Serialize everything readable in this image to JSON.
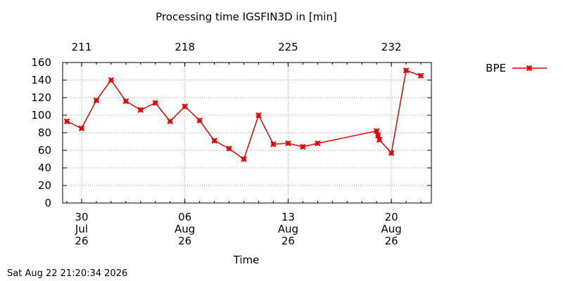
{
  "chart_data": {
    "type": "line",
    "title": "Processing time IGSFIN3D in [min]",
    "xlabel": "Time",
    "ylabel": "",
    "ylim": [
      0,
      160
    ],
    "xlim": [
      "2026-07-29",
      "2026-08-23"
    ],
    "y_ticks": [
      "0",
      "20",
      "40",
      "60",
      "80",
      "100",
      "120",
      "140",
      "160"
    ],
    "x_ticks_bottom": [
      {
        "date": "2026-07-30",
        "label": [
          "30",
          "Jul",
          "26"
        ]
      },
      {
        "date": "2026-08-06",
        "label": [
          "06",
          "Aug",
          "26"
        ]
      },
      {
        "date": "2026-08-13",
        "label": [
          "13",
          "Aug",
          "26"
        ]
      },
      {
        "date": "2026-08-20",
        "label": [
          "20",
          "Aug",
          "26"
        ]
      }
    ],
    "x_ticks_top": [
      {
        "date": "2026-07-30",
        "label": "211"
      },
      {
        "date": "2026-08-06",
        "label": "218"
      },
      {
        "date": "2026-08-13",
        "label": "225"
      },
      {
        "date": "2026-08-20",
        "label": "232"
      }
    ],
    "grid": true,
    "legend_position": "top-right, outside plot",
    "series": [
      {
        "name": "BPE",
        "color": "#e00000",
        "marker": "x-cross",
        "x": [
          "2026-07-29",
          "2026-07-30",
          "2026-07-31",
          "2026-08-01",
          "2026-08-02",
          "2026-08-03",
          "2026-08-04",
          "2026-08-05",
          "2026-08-06",
          "2026-08-07",
          "2026-08-08",
          "2026-08-09",
          "2026-08-10",
          "2026-08-11",
          "2026-08-12",
          "2026-08-13",
          "2026-08-14",
          "2026-08-15",
          "2026-08-19",
          "2026-08-19",
          "2026-08-19",
          "2026-08-20",
          "2026-08-21",
          "2026-08-22"
        ],
        "y": [
          93,
          85,
          117,
          140,
          116,
          106,
          114,
          93,
          110,
          94,
          71,
          62,
          50,
          100,
          67,
          68,
          64,
          68,
          82,
          77,
          72,
          57,
          151,
          145
        ]
      }
    ]
  },
  "footer": {
    "timestamp": "Sat Aug 22 21:20:34 2026"
  }
}
